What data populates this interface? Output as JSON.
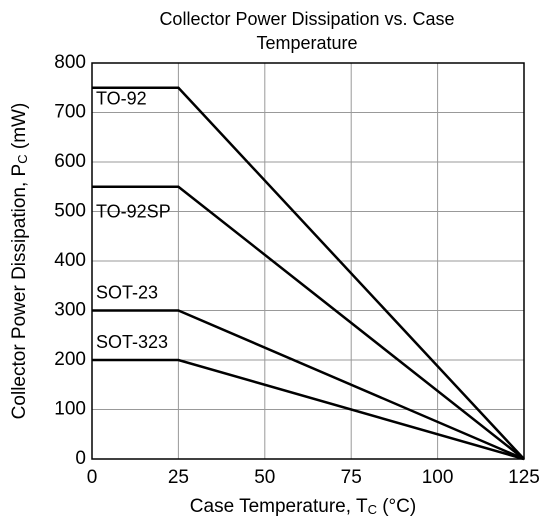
{
  "chart_data": {
    "type": "line",
    "title": [
      "Collector Power Dissipation vs. Case",
      "Temperature"
    ],
    "xlabel": [
      "Case Temperature, T",
      "C",
      " (°C)"
    ],
    "ylabel": [
      "Collector Power Dissipation, P",
      "C",
      " (mW)"
    ],
    "xlim": [
      0,
      125
    ],
    "ylim": [
      0,
      800
    ],
    "xticks": [
      0,
      25,
      50,
      75,
      100,
      125
    ],
    "yticks": [
      0,
      100,
      200,
      300,
      400,
      500,
      600,
      700,
      800
    ],
    "grid": true,
    "x": [
      0,
      25,
      125
    ],
    "series": [
      {
        "name": "TO-92",
        "color": "#000000",
        "values": [
          750,
          750,
          0
        ]
      },
      {
        "name": "TO-92SP",
        "color": "#000000",
        "values": [
          550,
          550,
          0
        ]
      },
      {
        "name": "SOT-23",
        "color": "#000000",
        "values": [
          300,
          300,
          0
        ]
      },
      {
        "name": "SOT-323",
        "color": "#000000",
        "values": [
          200,
          200,
          0
        ]
      }
    ]
  }
}
